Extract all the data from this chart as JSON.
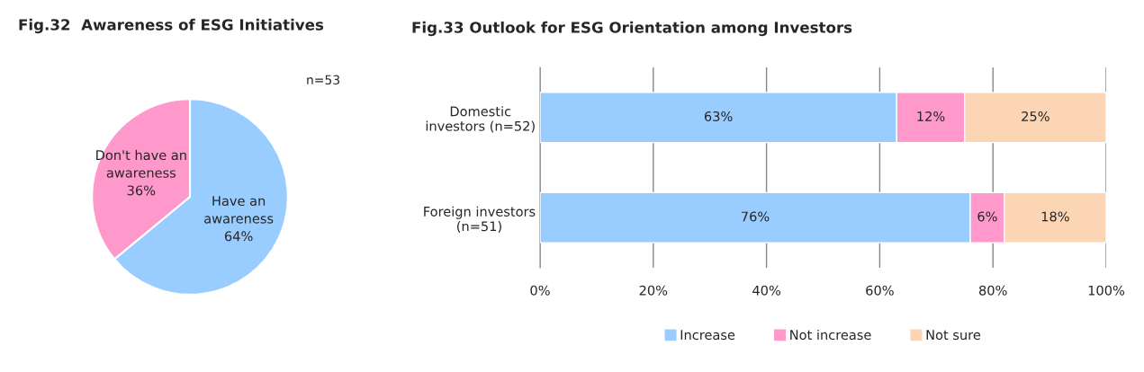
{
  "chart_data": [
    {
      "type": "pie",
      "title": "Fig.32  Awareness of ESG Initiatives",
      "categories": [
        "Have an\nawareness",
        "Don't have an\nawareness"
      ],
      "values": [
        64,
        36
      ],
      "colors": [
        "#99ccff",
        "#ff99cc"
      ],
      "value_labels": [
        "64%",
        "36%"
      ],
      "annotations": [
        "n=53"
      ]
    },
    {
      "type": "bar",
      "title": "Fig.33 Outlook for ESG Orientation among Investors",
      "orientation": "horizontal",
      "stacked": true,
      "categories": [
        "Domestic\ninvestors (n=52)",
        "Foreign investors\n(n=51)"
      ],
      "series": [
        {
          "name": "Increase",
          "color": "#99ccff",
          "values": [
            63,
            76
          ],
          "value_labels": [
            "63%",
            "76%"
          ]
        },
        {
          "name": "Not increase",
          "color": "#ff99cc",
          "values": [
            12,
            6
          ],
          "value_labels": [
            "12%",
            "6%"
          ]
        },
        {
          "name": "Not sure",
          "color": "#fcd5b4",
          "values": [
            25,
            18
          ],
          "value_labels": [
            "25%",
            "18%"
          ]
        }
      ],
      "xlim": [
        0,
        100
      ],
      "xticks": [
        {
          "value": 0,
          "label": "0%"
        },
        {
          "value": 20,
          "label": "20%"
        },
        {
          "value": 40,
          "label": "40%"
        },
        {
          "value": 60,
          "label": "60%"
        },
        {
          "value": 80,
          "label": "80%"
        },
        {
          "value": 100,
          "label": "100%"
        }
      ],
      "grid": "x",
      "legend": "bottom"
    }
  ]
}
